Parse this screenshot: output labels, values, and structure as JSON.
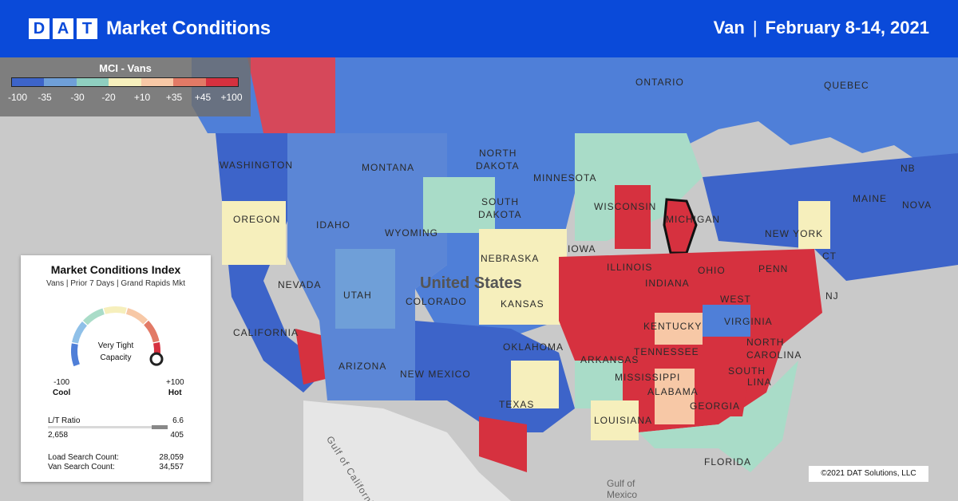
{
  "header": {
    "logo_letters": [
      "D",
      "A",
      "T"
    ],
    "title": "Market Conditions",
    "equipment": "Van",
    "separator": "|",
    "date_range": "February 8-14, 2021"
  },
  "legend": {
    "title": "MCI - Vans",
    "colors": [
      "#3d64c9",
      "#6f9fd8",
      "#8fcfc0",
      "#f6efbc",
      "#f7c8a6",
      "#e27a66",
      "#d6313f"
    ],
    "ticks": [
      "-100",
      "-35",
      "-30",
      "-20",
      "+10",
      "+35",
      "+45",
      "+100"
    ]
  },
  "card": {
    "title": "Market Conditions Index",
    "subtitle": "Vans | Prior 7 Days | Grand Rapids Mkt",
    "gauge_status_line1": "Very Tight",
    "gauge_status_line2": "Capacity",
    "gauge_value": 92,
    "min_value": "-100",
    "min_label": "Cool",
    "max_value": "+100",
    "max_label": "Hot",
    "ratio_label": "L/T Ratio",
    "ratio_value": "6.6",
    "ratio_left": "2,658",
    "ratio_right": "405",
    "load_search_label": "Load Search Count:",
    "load_search_value": "28,059",
    "van_search_label": "Van Search Count:",
    "van_search_value": "34,557"
  },
  "map_labels": {
    "ontario": "ONTARIO",
    "quebec": "QUEBEC",
    "washington": "WASHINGTON",
    "montana": "MONTANA",
    "north_dakota_1": "NORTH",
    "north_dakota_2": "DAKOTA",
    "minnesota": "MINNESOTA",
    "south_dakota_1": "SOUTH",
    "south_dakota_2": "DAKOTA",
    "oregon": "OREGON",
    "idaho": "IDAHO",
    "wyoming": "WYOMING",
    "wisconsin": "WISCONSIN",
    "michigan": "MICHIGAN",
    "new_york": "NEW YORK",
    "maine": "MAINE",
    "nova": "NOVA",
    "nb": "NB",
    "nebraska": "NEBRASKA",
    "iowa": "IOWA",
    "nevada": "NEVADA",
    "utah": "UTAH",
    "colorado": "COLORADO",
    "united_states": "United States",
    "kansas": "KANSAS",
    "illinois": "ILLINOIS",
    "indiana": "INDIANA",
    "ohio": "OHIO",
    "penn": "PENN",
    "nj": "NJ",
    "ct": "CT",
    "west": "WEST",
    "virginia": "VIRGINIA",
    "kentucky": "KENTUCKY",
    "california": "CALIFORNIA",
    "arizona": "ARIZONA",
    "new_mexico": "NEW MEXICO",
    "oklahoma": "OKLAHOMA",
    "tennessee": "TENNESSEE",
    "north_carolina_1": "NORTH",
    "north_carolina_2": "CAROLINA",
    "arkansas": "ARKANSAS",
    "mississippi": "MISSISSIPPI",
    "south_carolina": "SOUTH",
    "carolina2": "LINA",
    "alabama": "ALABAMA",
    "georgia": "GEORGIA",
    "texas": "TEXAS",
    "louisiana": "LOUISIANA",
    "florida": "FLORIDA",
    "gulf_of_california": "Gulf of California",
    "gulf_of_mexico_1": "Gulf of",
    "gulf_of_mexico_2": "Mexico"
  },
  "copyright": "©2021 DAT Solutions, LLC"
}
